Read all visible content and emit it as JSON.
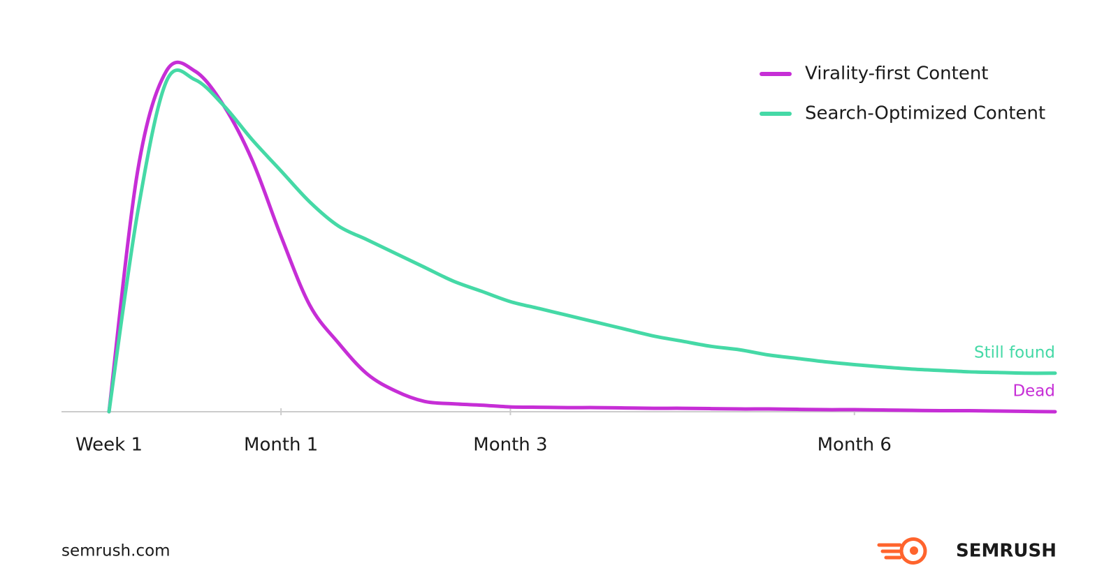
{
  "chart_data": {
    "type": "line",
    "categories": [
      "Week 1",
      null,
      null,
      null,
      null,
      null,
      "Month 1",
      null,
      null,
      null,
      null,
      null,
      null,
      null,
      "Month 3",
      null,
      null,
      null,
      null,
      null,
      null,
      null,
      null,
      null,
      null,
      null,
      "Month 6",
      null,
      null,
      null,
      null,
      null,
      null,
      null
    ],
    "series": [
      {
        "name": "Virality-first Content",
        "color": "#c62ed6",
        "annotation": "Dead",
        "values": [
          0,
          70,
          99,
          99,
          89,
          73,
          51,
          31,
          20,
          11,
          6,
          3,
          2.3,
          1.9,
          1.4,
          1.3,
          1.2,
          1.2,
          1.1,
          1.0,
          1.0,
          0.9,
          0.8,
          0.8,
          0.7,
          0.6,
          0.6,
          0.5,
          0.4,
          0.3,
          0.3,
          0.2,
          0.1,
          0
        ]
      },
      {
        "name": "Search-Optimized Content",
        "color": "#45d9a6",
        "annotation": "Still found",
        "values": [
          0,
          58,
          96,
          96.5,
          89,
          79,
          70,
          61,
          54,
          50,
          46,
          42,
          38,
          35,
          32,
          30,
          28,
          26,
          24,
          22,
          20.5,
          19,
          18,
          16.5,
          15.5,
          14.5,
          13.7,
          13,
          12.4,
          12,
          11.6,
          11.4,
          11.2,
          11.2
        ]
      }
    ],
    "ylim": [
      0,
      100
    ],
    "legend": "top-right",
    "source": "semrush.com",
    "brand": "SEMRUSH"
  }
}
